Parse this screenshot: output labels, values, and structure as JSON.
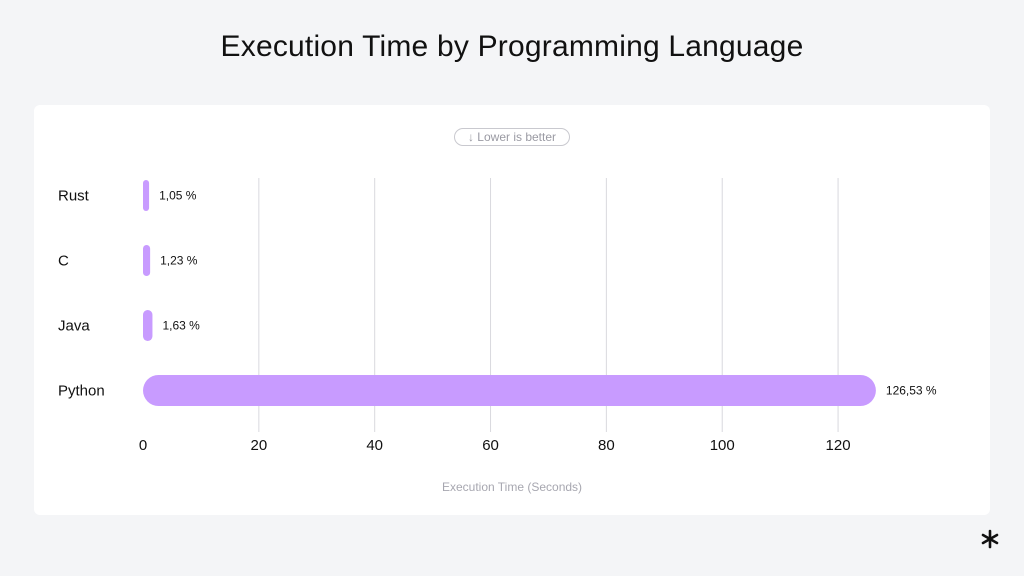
{
  "page": {
    "title": "Execution Time by Programming Language",
    "hint": "↓ Lower is better"
  },
  "chart_data": {
    "type": "bar",
    "orientation": "horizontal",
    "categories": [
      "Rust",
      "C",
      "Java",
      "Python"
    ],
    "values": [
      1.05,
      1.23,
      1.63,
      126.53
    ],
    "value_labels": [
      "1,05 %",
      "1,23 %",
      "1,63 %",
      "126,53 %"
    ],
    "title": "Execution Time by Programming Language",
    "xlabel": "Execution Time (Seconds)",
    "ylabel": "",
    "xlim": [
      0,
      130
    ],
    "xticks": [
      0,
      20,
      40,
      60,
      80,
      100,
      120
    ],
    "grid": true,
    "bar_color": "#c89bff",
    "legend": "none"
  },
  "colors": {
    "background": "#f4f5f7",
    "card": "#ffffff",
    "grid": "#d9d9de",
    "bar": "#c89bff",
    "text": "#111111",
    "muted": "#9a9aa3"
  },
  "brand": {
    "icon": "asterisk-logo-icon"
  }
}
